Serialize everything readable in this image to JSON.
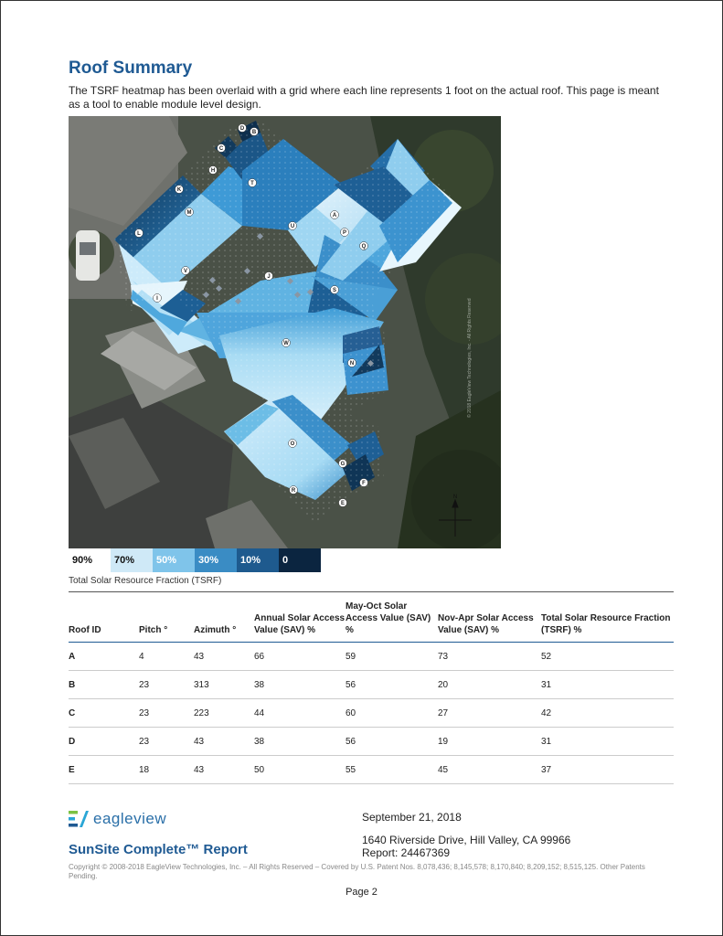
{
  "page": {
    "title": "Roof Summary",
    "intro": "The TSRF heatmap has been overlaid with a grid where each line represents 1 foot on the actual roof.  This page is meant as a tool to enable module level design."
  },
  "map": {
    "watermark": "© 2018 EagleView Technologies, Inc. - All Rights Reserved",
    "compass": "N",
    "roof_labels": [
      "A",
      "B",
      "C",
      "D",
      "E",
      "F",
      "G",
      "H",
      "I",
      "J",
      "K",
      "L",
      "M",
      "N",
      "O",
      "P",
      "Q",
      "R",
      "S",
      "T",
      "U",
      "V",
      "W"
    ]
  },
  "legend": {
    "items": [
      {
        "label": "90%",
        "color": "#ffffff",
        "text_color": "#111111"
      },
      {
        "label": "70%",
        "color": "#cfe9f7",
        "text_color": "#111111"
      },
      {
        "label": "50%",
        "color": "#7fc4ea",
        "text_color": "#ffffff"
      },
      {
        "label": "30%",
        "color": "#3a8cc4",
        "text_color": "#ffffff"
      },
      {
        "label": "10%",
        "color": "#1e5a8e",
        "text_color": "#ffffff"
      },
      {
        "label": "0",
        "color": "#0b2540",
        "text_color": "#ffffff"
      }
    ],
    "caption": "Total Solar Resource Fraction (TSRF)"
  },
  "table": {
    "headers": [
      "Roof ID",
      "Pitch °",
      "Azimuth °",
      "Annual Solar Access Value (SAV) %",
      "May-Oct Solar Access Value (SAV) %",
      "Nov-Apr Solar Access Value (SAV) %",
      "Total Solar Resource Fraction (TSRF)  %"
    ],
    "rows": [
      [
        "A",
        "4",
        "43",
        "66",
        "59",
        "73",
        "52"
      ],
      [
        "B",
        "23",
        "313",
        "38",
        "56",
        "20",
        "31"
      ],
      [
        "C",
        "23",
        "223",
        "44",
        "60",
        "27",
        "42"
      ],
      [
        "D",
        "23",
        "43",
        "38",
        "56",
        "19",
        "31"
      ],
      [
        "E",
        "18",
        "43",
        "50",
        "55",
        "45",
        "37"
      ]
    ]
  },
  "footer": {
    "brand": "eagleview",
    "report_title": "SunSite Complete™ Report",
    "date": "September 21, 2018",
    "address": "1640 Riverside Drive, Hill Valley, CA 99966",
    "report_number": "Report: 24467369",
    "copyright": "Copyright © 2008-2018 EagleView Technologies, Inc. – All Rights Reserved – Covered by U.S. Patent Nos. 8,078,436; 8,145,578; 8,170,840; 8,209,152; 8,515,125. Other Patents Pending.",
    "page": "Page 2"
  },
  "colors": {
    "heading": "#1f5a93",
    "roof_light": "#bfe3f6",
    "roof_mid": "#5fb2e0",
    "roof_dark": "#123a5c",
    "roof_edge": "#2a7fc0"
  }
}
